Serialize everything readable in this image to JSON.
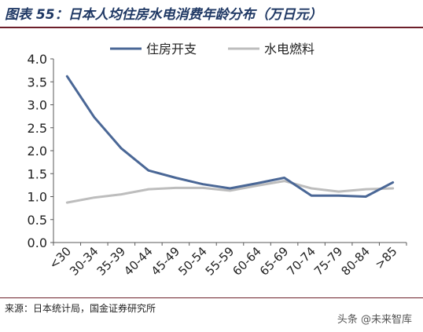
{
  "figure": {
    "title": "图表 55：日本人均住房水电消费年龄分布（万日元）",
    "source": "来源：日本统计局，国金证券研究所",
    "watermark": "头条 @未来智库"
  },
  "colors": {
    "housing": "#4a6796",
    "utilities": "#bdbdbd",
    "axis": "#595959",
    "title": "#1f3864",
    "rule": "#6d1f2a"
  },
  "chart_data": {
    "type": "line",
    "categories": [
      "<30",
      "30-34",
      "35-39",
      "40-44",
      "45-49",
      "50-54",
      "55-59",
      "60-64",
      "65-69",
      "70-74",
      "75-79",
      "80-84",
      ">85"
    ],
    "series": [
      {
        "name": "住房开支",
        "values": [
          3.62,
          2.73,
          2.05,
          1.57,
          1.41,
          1.27,
          1.18,
          1.29,
          1.41,
          1.02,
          1.02,
          1.0,
          1.31
        ]
      },
      {
        "name": "水电燃料",
        "values": [
          0.87,
          0.98,
          1.05,
          1.16,
          1.19,
          1.19,
          1.13,
          1.24,
          1.34,
          1.18,
          1.11,
          1.16,
          1.18
        ]
      }
    ],
    "ylim": [
      0,
      4.0
    ],
    "yticks": [
      "0.0",
      "0.5",
      "1.0",
      "1.5",
      "2.0",
      "2.5",
      "3.0",
      "3.5",
      "4.0"
    ],
    "legend": "top",
    "grid": false
  }
}
